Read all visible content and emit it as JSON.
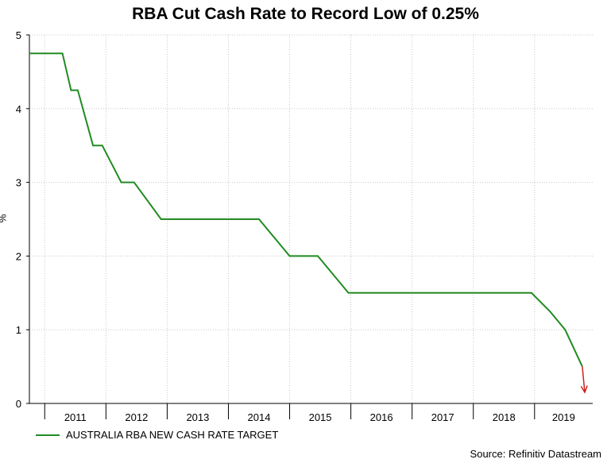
{
  "chart_data": {
    "type": "line",
    "title": "RBA Cut Cash Rate to Record Low of 0.25%",
    "ylabel": "%",
    "xlabel": "",
    "ylim": [
      0,
      5
    ],
    "yticks": [
      "0",
      "1",
      "2",
      "3",
      "4",
      "5"
    ],
    "xlim": [
      2010.75,
      2019.95
    ],
    "xticks": [
      "2011",
      "2012",
      "2013",
      "2014",
      "2015",
      "2016",
      "2017",
      "2018",
      "2019"
    ],
    "grid": true,
    "legend_position": "bottom-left",
    "series": [
      {
        "name": "AUSTRALIA RBA NEW CASH RATE TARGET",
        "color": "#228B22",
        "x": [
          2010.75,
          2011.29,
          2011.43,
          2011.54,
          2011.79,
          2011.94,
          2012.25,
          2012.46,
          2012.9,
          2013.31,
          2013.59,
          2014.0,
          2014.5,
          2015.0,
          2015.46,
          2015.96,
          2016.2,
          2016.5,
          2017.0,
          2018.0,
          2018.95,
          2019.25,
          2019.5,
          2019.78
        ],
        "y": [
          4.75,
          4.75,
          4.25,
          4.25,
          3.5,
          3.5,
          3.0,
          3.0,
          2.5,
          2.5,
          2.5,
          2.5,
          2.5,
          2.0,
          2.0,
          1.5,
          1.5,
          1.5,
          1.5,
          1.5,
          1.5,
          1.25,
          1.0,
          0.5
        ]
      }
    ],
    "annotation": {
      "arrow_color": "#CC2222",
      "from": [
        2019.78,
        0.5
      ],
      "to": [
        2019.82,
        0.15
      ]
    }
  },
  "legend": {
    "label": "AUSTRALIA RBA NEW CASH RATE TARGET"
  },
  "source": "Source: Refinitiv Datastream"
}
